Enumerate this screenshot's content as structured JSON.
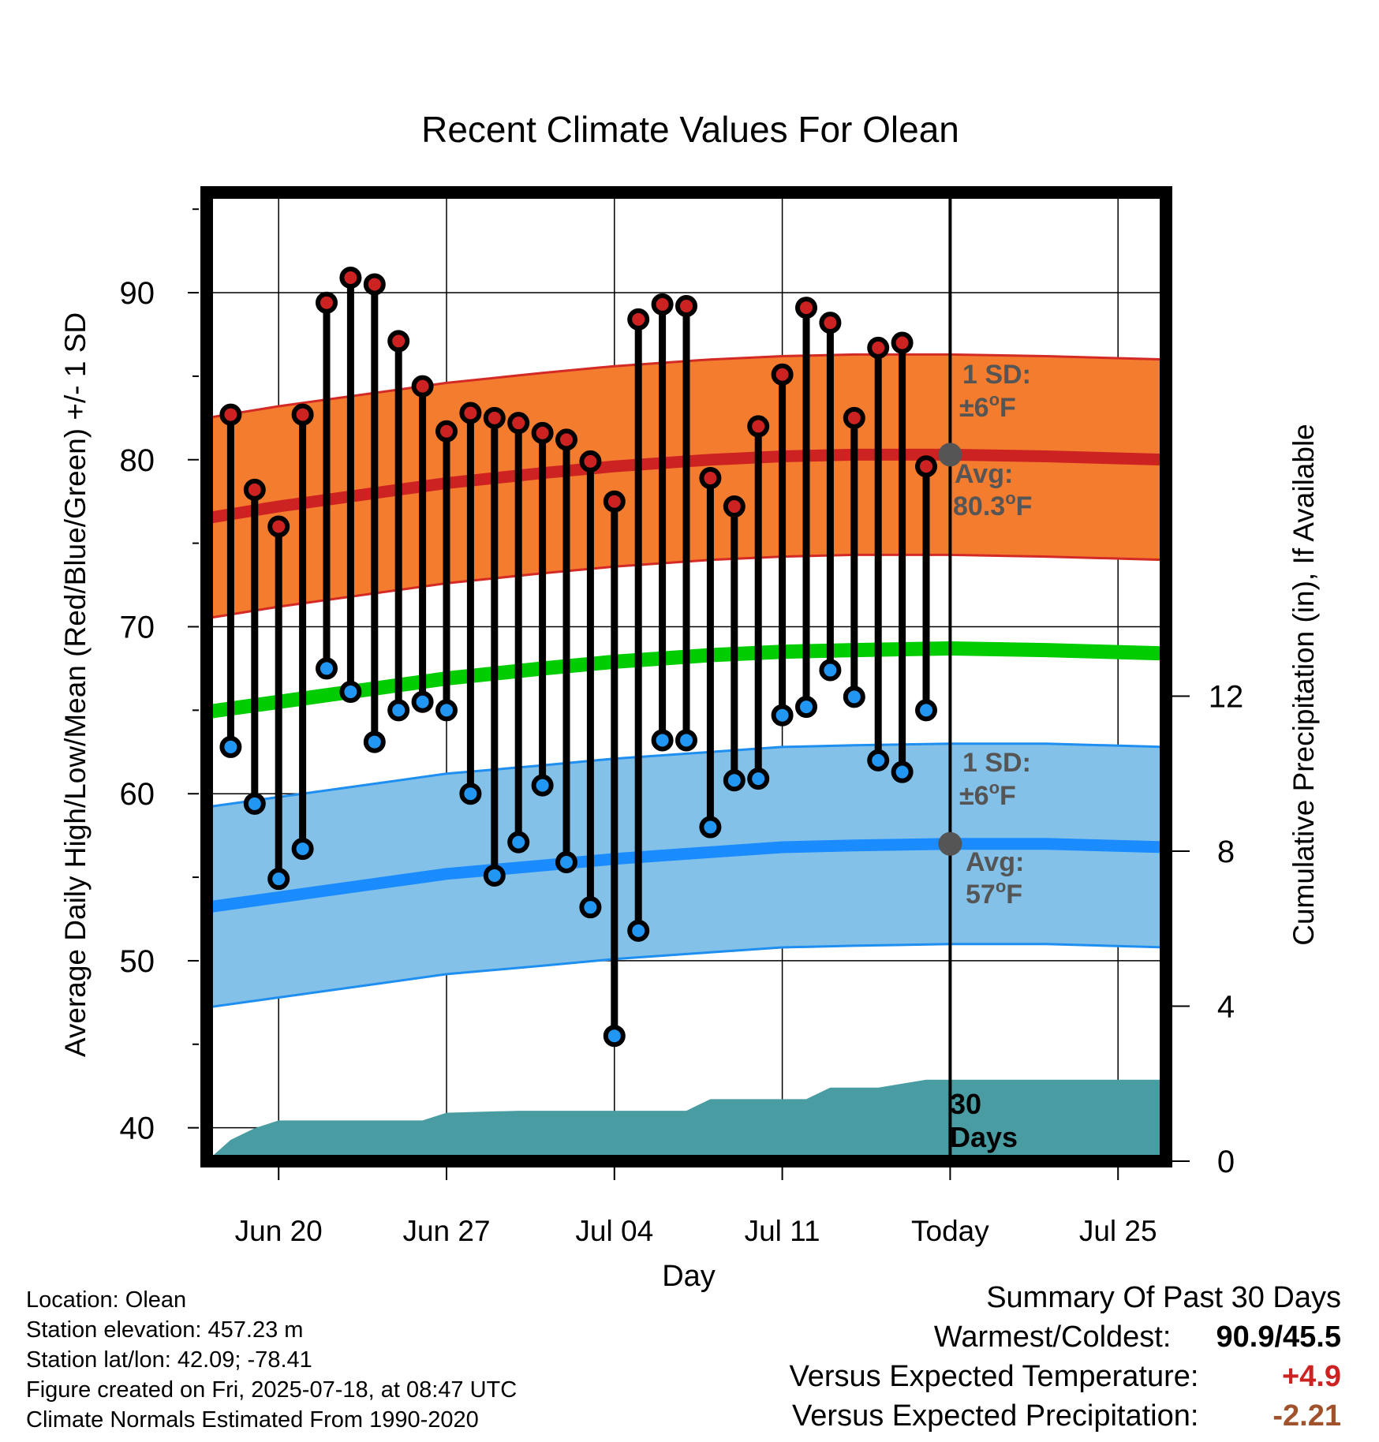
{
  "chart_data": {
    "type": "line",
    "title": "Recent Climate Values For Olean",
    "xlabel": "Day",
    "ylabel": "Average Daily High/Low/Mean (Red/Blue/Green) +/- 1 SD",
    "y2label": "Cumulative Precipitation (in), If Available",
    "ylim": [
      38,
      96
    ],
    "y2lim": [
      0,
      25
    ],
    "y_ticks": [
      40,
      50,
      60,
      70,
      80,
      90
    ],
    "y2_ticks": [
      0,
      4,
      8,
      12
    ],
    "x_ticks": [
      {
        "date": "2025-06-20",
        "label": "Jun 20"
      },
      {
        "date": "2025-06-27",
        "label": "Jun 27"
      },
      {
        "date": "2025-07-04",
        "label": "Jul 04"
      },
      {
        "date": "2025-07-11",
        "label": "Jul 11"
      },
      {
        "date": "2025-07-18",
        "label": "Today"
      },
      {
        "date": "2025-07-25",
        "label": "Jul 25"
      }
    ],
    "x_range": [
      "2025-06-17",
      "2025-07-27"
    ],
    "today": "2025-07-18",
    "grid": true,
    "colors": {
      "high_band": "#f47c2e",
      "high_band_edge": "#d42a25",
      "high_avg": "#cc2222",
      "low_band": "#83c1e8",
      "low_band_edge": "#1e8ff0",
      "low_avg": "#1a8cff",
      "mean": "#00cc00",
      "precip": "#489ca2",
      "high_marker": "#cc2222",
      "low_marker": "#2196f3",
      "label_gray": "#555555",
      "warm_text": "#cc2222",
      "precip_text": "#a0522d"
    },
    "normals": [
      {
        "date": "2025-06-17",
        "high": 76.5,
        "low": 53.2,
        "mean": 64.9
      },
      {
        "date": "2025-06-20",
        "high": 77.2,
        "low": 53.8,
        "mean": 65.5
      },
      {
        "date": "2025-06-24",
        "high": 78.0,
        "low": 54.6,
        "mean": 66.3
      },
      {
        "date": "2025-06-27",
        "high": 78.6,
        "low": 55.2,
        "mean": 66.9
      },
      {
        "date": "2025-07-01",
        "high": 79.2,
        "low": 55.7,
        "mean": 67.5
      },
      {
        "date": "2025-07-04",
        "high": 79.6,
        "low": 56.1,
        "mean": 67.9
      },
      {
        "date": "2025-07-08",
        "high": 80.0,
        "low": 56.5,
        "mean": 68.3
      },
      {
        "date": "2025-07-11",
        "high": 80.2,
        "low": 56.8,
        "mean": 68.5
      },
      {
        "date": "2025-07-14",
        "high": 80.3,
        "low": 56.9,
        "mean": 68.6
      },
      {
        "date": "2025-07-18",
        "high": 80.3,
        "low": 57.0,
        "mean": 68.7
      },
      {
        "date": "2025-07-22",
        "high": 80.2,
        "low": 57.0,
        "mean": 68.6
      },
      {
        "date": "2025-07-27",
        "high": 80.0,
        "low": 56.8,
        "mean": 68.4
      }
    ],
    "sd": 6,
    "series": [
      {
        "name": "High",
        "values": [
          {
            "date": "2025-06-18",
            "value": 82.7
          },
          {
            "date": "2025-06-19",
            "value": 78.2
          },
          {
            "date": "2025-06-20",
            "value": 76.0
          },
          {
            "date": "2025-06-21",
            "value": 82.7
          },
          {
            "date": "2025-06-22",
            "value": 89.4
          },
          {
            "date": "2025-06-23",
            "value": 90.9
          },
          {
            "date": "2025-06-24",
            "value": 90.5
          },
          {
            "date": "2025-06-25",
            "value": 87.1
          },
          {
            "date": "2025-06-26",
            "value": 84.4
          },
          {
            "date": "2025-06-27",
            "value": 81.7
          },
          {
            "date": "2025-06-28",
            "value": 82.8
          },
          {
            "date": "2025-06-29",
            "value": 82.5
          },
          {
            "date": "2025-06-30",
            "value": 82.2
          },
          {
            "date": "2025-07-01",
            "value": 81.6
          },
          {
            "date": "2025-07-02",
            "value": 81.2
          },
          {
            "date": "2025-07-03",
            "value": 79.9
          },
          {
            "date": "2025-07-04",
            "value": 77.5
          },
          {
            "date": "2025-07-05",
            "value": 88.4
          },
          {
            "date": "2025-07-06",
            "value": 89.3
          },
          {
            "date": "2025-07-07",
            "value": 89.2
          },
          {
            "date": "2025-07-08",
            "value": 78.9
          },
          {
            "date": "2025-07-09",
            "value": 77.2
          },
          {
            "date": "2025-07-10",
            "value": 82.0
          },
          {
            "date": "2025-07-11",
            "value": 85.1
          },
          {
            "date": "2025-07-12",
            "value": 89.1
          },
          {
            "date": "2025-07-13",
            "value": 88.2
          },
          {
            "date": "2025-07-14",
            "value": 82.5
          },
          {
            "date": "2025-07-15",
            "value": 86.7
          },
          {
            "date": "2025-07-16",
            "value": 87.0
          },
          {
            "date": "2025-07-17",
            "value": 79.6
          }
        ]
      },
      {
        "name": "Low",
        "values": [
          {
            "date": "2025-06-18",
            "value": 62.8
          },
          {
            "date": "2025-06-19",
            "value": 59.4
          },
          {
            "date": "2025-06-20",
            "value": 54.9
          },
          {
            "date": "2025-06-21",
            "value": 56.7
          },
          {
            "date": "2025-06-22",
            "value": 67.5
          },
          {
            "date": "2025-06-23",
            "value": 66.1
          },
          {
            "date": "2025-06-24",
            "value": 63.1
          },
          {
            "date": "2025-06-25",
            "value": 65.0
          },
          {
            "date": "2025-06-26",
            "value": 65.5
          },
          {
            "date": "2025-06-27",
            "value": 65.0
          },
          {
            "date": "2025-06-28",
            "value": 60.0
          },
          {
            "date": "2025-06-29",
            "value": 55.1
          },
          {
            "date": "2025-06-30",
            "value": 57.1
          },
          {
            "date": "2025-07-01",
            "value": 60.5
          },
          {
            "date": "2025-07-02",
            "value": 55.9
          },
          {
            "date": "2025-07-03",
            "value": 53.2
          },
          {
            "date": "2025-07-04",
            "value": 45.5
          },
          {
            "date": "2025-07-05",
            "value": 51.8
          },
          {
            "date": "2025-07-06",
            "value": 63.2
          },
          {
            "date": "2025-07-07",
            "value": 63.2
          },
          {
            "date": "2025-07-08",
            "value": 58.0
          },
          {
            "date": "2025-07-09",
            "value": 60.8
          },
          {
            "date": "2025-07-10",
            "value": 60.9
          },
          {
            "date": "2025-07-11",
            "value": 64.7
          },
          {
            "date": "2025-07-12",
            "value": 65.2
          },
          {
            "date": "2025-07-13",
            "value": 67.4
          },
          {
            "date": "2025-07-14",
            "value": 65.8
          },
          {
            "date": "2025-07-15",
            "value": 62.0
          },
          {
            "date": "2025-07-16",
            "value": 61.3
          },
          {
            "date": "2025-07-17",
            "value": 65.0
          }
        ]
      }
    ],
    "precip": [
      {
        "date": "2025-06-17",
        "value": 0.0
      },
      {
        "date": "2025-06-18",
        "value": 0.55
      },
      {
        "date": "2025-06-19",
        "value": 0.85
      },
      {
        "date": "2025-06-20",
        "value": 1.05
      },
      {
        "date": "2025-06-26",
        "value": 1.05
      },
      {
        "date": "2025-06-27",
        "value": 1.25
      },
      {
        "date": "2025-06-30",
        "value": 1.3
      },
      {
        "date": "2025-07-07",
        "value": 1.3
      },
      {
        "date": "2025-07-08",
        "value": 1.6
      },
      {
        "date": "2025-07-12",
        "value": 1.6
      },
      {
        "date": "2025-07-13",
        "value": 1.9
      },
      {
        "date": "2025-07-15",
        "value": 1.9
      },
      {
        "date": "2025-07-16",
        "value": 2.0
      },
      {
        "date": "2025-07-17",
        "value": 2.1
      },
      {
        "date": "2025-07-27",
        "value": 2.1
      }
    ],
    "annotations": {
      "high_sd_line1": "1 SD:",
      "high_sd_line2": "±6",
      "high_avg_line1": "Avg:",
      "high_avg_line2": "80.3",
      "high_avg_value": 80.3,
      "low_sd_line1": "1 SD:",
      "low_sd_line2": "±6",
      "low_avg_line1": "Avg:",
      "low_avg_line2": "57",
      "low_avg_value": 57,
      "deg_o": "o",
      "unit_F": "F",
      "precip_line1": "30",
      "precip_line2": "Days"
    }
  },
  "meta": {
    "location": "Location: Olean",
    "elevation": "Station elevation: 457.23 m",
    "latlon": "Station lat/lon: 42.09; -78.41",
    "created": "Figure created on Fri, 2025-07-18, at 08:47 UTC",
    "normals": "Climate Normals Estimated From 1990-2020"
  },
  "summary": {
    "title": "Summary Of Past 30 Days",
    "warmest_label": "Warmest/Coldest:",
    "warmest_value": "90.9/45.5",
    "temp_label": "Versus Expected Temperature:",
    "temp_value": "+4.9",
    "precip_label": "Versus Expected Precipitation:",
    "precip_value": "-2.21"
  }
}
